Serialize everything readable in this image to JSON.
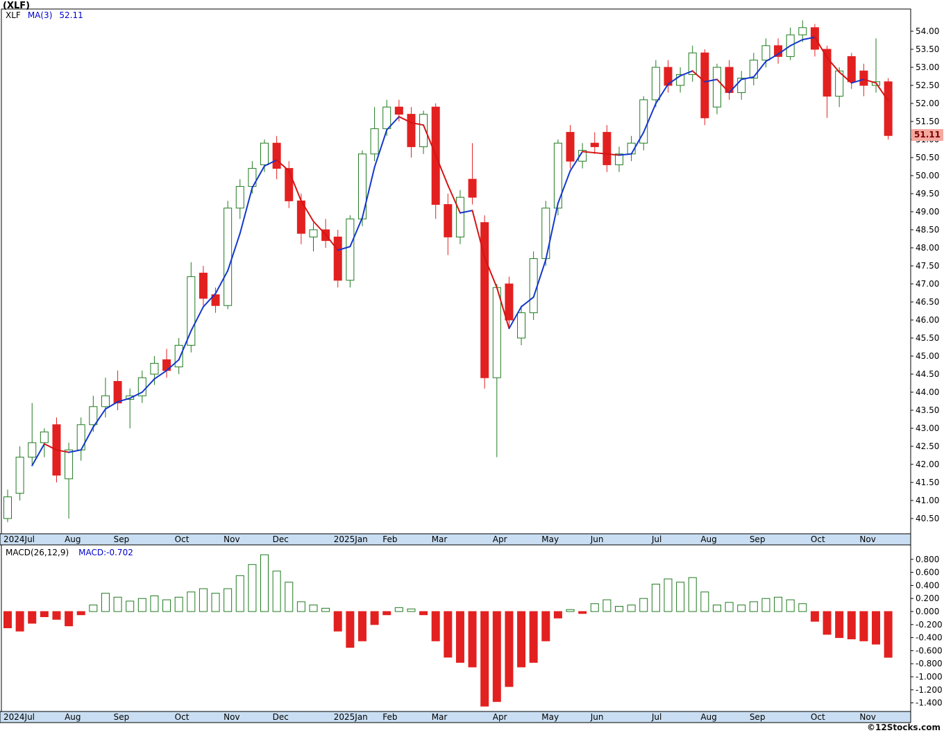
{
  "window": {
    "title": "(XLF)"
  },
  "price_panel": {
    "legend": {
      "symbol": "XLF",
      "ma_label": "MA(3)",
      "ma_value": "52.11"
    },
    "last_price": "51.11"
  },
  "macd_panel": {
    "legend_label": "MACD(26,12,9)",
    "legend_value": "MACD:-0.702"
  },
  "watermark": "©12Stocks.com",
  "colors": {
    "up": "#1f7a1f",
    "down": "#e32020",
    "ma_up": "#1437cc",
    "ma_down": "#d41414",
    "axis_strip": "#c9def2",
    "last_price_bg": "#f5a9a0",
    "last_price_text": "#7a0000"
  },
  "chart_data": [
    {
      "type": "candlestick",
      "title": "(XLF)",
      "timeframe": "weekly",
      "legend": [
        "XLF",
        "MA(3) 52.11"
      ],
      "ma_period": 3,
      "ma_last": 52.11,
      "last_price": 51.11,
      "y_axis": {
        "min": 40.5,
        "max": 54.0,
        "tick_step": 0.5,
        "side": "right",
        "grid": false
      },
      "x_tick_labels": [
        {
          "label": "2024Jul",
          "index": 0
        },
        {
          "label": "Aug",
          "index": 5
        },
        {
          "label": "Sep",
          "index": 9
        },
        {
          "label": "Oct",
          "index": 14
        },
        {
          "label": "Nov",
          "index": 18
        },
        {
          "label": "Dec",
          "index": 22
        },
        {
          "label": "2025Jan",
          "index": 27
        },
        {
          "label": "Feb",
          "index": 31
        },
        {
          "label": "Mar",
          "index": 35
        },
        {
          "label": "Apr",
          "index": 40
        },
        {
          "label": "May",
          "index": 44
        },
        {
          "label": "Jun",
          "index": 48
        },
        {
          "label": "Jul",
          "index": 53
        },
        {
          "label": "Aug",
          "index": 57
        },
        {
          "label": "Sep",
          "index": 61
        },
        {
          "label": "Oct",
          "index": 66
        },
        {
          "label": "Nov",
          "index": 70
        }
      ],
      "candles_format": [
        "open",
        "high",
        "low",
        "close"
      ],
      "candles": [
        [
          40.5,
          41.3,
          40.4,
          41.1
        ],
        [
          41.2,
          42.5,
          41.0,
          42.2
        ],
        [
          42.2,
          43.7,
          42.0,
          42.6
        ],
        [
          42.6,
          43.0,
          42.2,
          42.9
        ],
        [
          43.1,
          43.3,
          41.5,
          41.7
        ],
        [
          41.6,
          42.6,
          40.5,
          42.4
        ],
        [
          42.4,
          43.3,
          42.1,
          43.1
        ],
        [
          43.1,
          43.9,
          42.9,
          43.6
        ],
        [
          43.6,
          44.4,
          43.3,
          43.9
        ],
        [
          44.3,
          44.6,
          43.5,
          43.7
        ],
        [
          43.8,
          44.1,
          43.0,
          43.9
        ],
        [
          43.9,
          44.6,
          43.7,
          44.4
        ],
        [
          44.5,
          45.0,
          44.2,
          44.8
        ],
        [
          44.9,
          45.2,
          44.4,
          44.6
        ],
        [
          44.7,
          45.5,
          44.5,
          45.3
        ],
        [
          45.3,
          47.6,
          45.1,
          47.2
        ],
        [
          47.3,
          47.5,
          46.4,
          46.6
        ],
        [
          46.7,
          46.9,
          46.2,
          46.4
        ],
        [
          46.4,
          49.3,
          46.3,
          49.1
        ],
        [
          49.1,
          49.9,
          48.8,
          49.7
        ],
        [
          49.7,
          50.4,
          49.5,
          50.2
        ],
        [
          50.3,
          51.0,
          50.1,
          50.9
        ],
        [
          50.9,
          51.1,
          49.9,
          50.2
        ],
        [
          50.2,
          50.4,
          49.1,
          49.3
        ],
        [
          49.3,
          49.5,
          48.1,
          48.4
        ],
        [
          48.3,
          48.7,
          47.9,
          48.5
        ],
        [
          48.5,
          48.8,
          48.0,
          48.2
        ],
        [
          48.3,
          48.5,
          46.9,
          47.1
        ],
        [
          47.1,
          48.9,
          46.9,
          48.8
        ],
        [
          48.8,
          50.7,
          48.6,
          50.6
        ],
        [
          50.6,
          51.9,
          50.4,
          51.3
        ],
        [
          51.3,
          52.1,
          51.1,
          51.9
        ],
        [
          51.9,
          52.1,
          51.5,
          51.7
        ],
        [
          51.7,
          51.9,
          50.5,
          50.8
        ],
        [
          50.8,
          51.8,
          50.6,
          51.7
        ],
        [
          51.9,
          52.0,
          48.8,
          49.2
        ],
        [
          49.2,
          49.5,
          47.8,
          48.3
        ],
        [
          48.3,
          49.6,
          48.1,
          49.4
        ],
        [
          49.9,
          50.9,
          49.2,
          49.4
        ],
        [
          48.7,
          48.9,
          44.1,
          44.4
        ],
        [
          44.4,
          47.0,
          42.2,
          46.9
        ],
        [
          47.0,
          47.2,
          45.8,
          46.0
        ],
        [
          45.5,
          46.4,
          45.3,
          46.2
        ],
        [
          46.2,
          47.9,
          46.0,
          47.7
        ],
        [
          47.7,
          49.3,
          47.5,
          49.1
        ],
        [
          49.1,
          51.0,
          48.9,
          50.9
        ],
        [
          51.2,
          51.4,
          50.2,
          50.4
        ],
        [
          50.4,
          50.9,
          50.2,
          50.7
        ],
        [
          50.9,
          51.2,
          50.6,
          50.8
        ],
        [
          51.2,
          51.4,
          50.1,
          50.3
        ],
        [
          50.3,
          50.8,
          50.1,
          50.6
        ],
        [
          50.6,
          51.1,
          50.4,
          50.9
        ],
        [
          50.9,
          52.2,
          50.7,
          52.1
        ],
        [
          52.1,
          53.2,
          51.9,
          53.0
        ],
        [
          53.0,
          53.2,
          52.3,
          52.5
        ],
        [
          52.5,
          53.0,
          52.3,
          52.8
        ],
        [
          52.8,
          53.6,
          52.6,
          53.4
        ],
        [
          53.4,
          53.5,
          51.4,
          51.6
        ],
        [
          51.9,
          53.1,
          51.7,
          53.0
        ],
        [
          53.0,
          53.2,
          52.1,
          52.3
        ],
        [
          52.3,
          52.9,
          52.1,
          52.7
        ],
        [
          52.7,
          53.4,
          52.5,
          53.2
        ],
        [
          53.2,
          53.8,
          53.0,
          53.6
        ],
        [
          53.6,
          53.8,
          53.1,
          53.3
        ],
        [
          53.3,
          54.1,
          53.2,
          53.9
        ],
        [
          53.9,
          54.3,
          53.7,
          54.1
        ],
        [
          54.1,
          54.2,
          53.3,
          53.5
        ],
        [
          53.5,
          53.6,
          51.6,
          52.2
        ],
        [
          52.2,
          53.0,
          51.9,
          52.9
        ],
        [
          53.3,
          53.4,
          52.4,
          52.6
        ],
        [
          52.9,
          53.1,
          52.2,
          52.5
        ],
        [
          52.5,
          53.8,
          52.3,
          52.6
        ],
        [
          52.6,
          52.7,
          51.0,
          51.11
        ]
      ]
    },
    {
      "type": "bar",
      "title": "MACD(26,12,9)",
      "last_value": -0.702,
      "y_axis": {
        "min": -1.4,
        "max": 0.8,
        "tick_step": 0.2,
        "side": "right",
        "grid": false
      },
      "values": [
        -0.25,
        -0.3,
        -0.18,
        -0.08,
        -0.12,
        -0.22,
        -0.05,
        0.1,
        0.28,
        0.22,
        0.16,
        0.2,
        0.24,
        0.18,
        0.22,
        0.3,
        0.35,
        0.28,
        0.35,
        0.55,
        0.72,
        0.87,
        0.62,
        0.45,
        0.15,
        0.1,
        0.05,
        -0.3,
        -0.55,
        -0.45,
        -0.2,
        -0.05,
        0.06,
        0.04,
        -0.05,
        -0.45,
        -0.7,
        -0.78,
        -0.85,
        -1.45,
        -1.38,
        -1.15,
        -0.85,
        -0.78,
        -0.45,
        -0.1,
        0.03,
        -0.03,
        0.12,
        0.18,
        0.08,
        0.1,
        0.2,
        0.42,
        0.5,
        0.45,
        0.52,
        0.3,
        0.1,
        0.14,
        0.1,
        0.15,
        0.2,
        0.22,
        0.18,
        0.12,
        -0.15,
        -0.35,
        -0.4,
        -0.42,
        -0.45,
        -0.5,
        -0.702
      ]
    }
  ]
}
